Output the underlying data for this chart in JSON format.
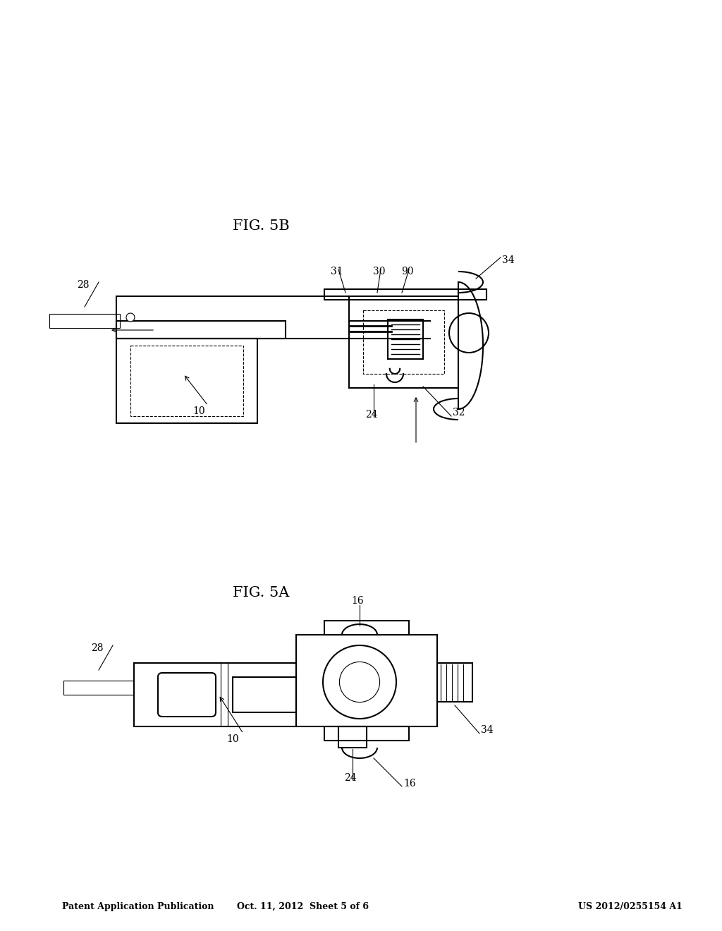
{
  "bg_color": "#ffffff",
  "line_color": "#000000",
  "header_left": "Patent Application Publication",
  "header_center": "Oct. 11, 2012  Sheet 5 of 6",
  "header_right": "US 2012/0255154 A1",
  "fig5a_label": "FIG. 5A",
  "fig5b_label": "FIG. 5B",
  "header_fontsize": 9,
  "fig_label_fontsize": 15,
  "ref_fontsize": 10
}
